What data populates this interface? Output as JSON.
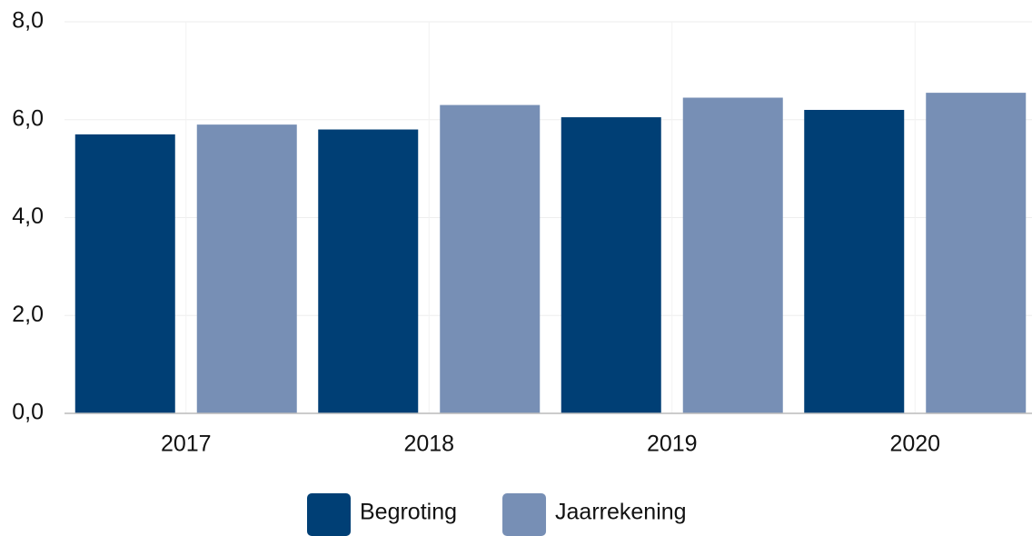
{
  "chart_data": {
    "type": "bar",
    "categories": [
      "2017",
      "2018",
      "2019",
      "2020"
    ],
    "series": [
      {
        "name": "Begroting",
        "color": "#003f75",
        "values": [
          5.7,
          5.8,
          6.05,
          6.2
        ]
      },
      {
        "name": "Jaarrekening",
        "color": "#778fb5",
        "values": [
          5.9,
          6.3,
          6.45,
          6.55
        ]
      }
    ],
    "ylim": [
      0,
      8
    ],
    "yticks": [
      {
        "value": 0,
        "label": "0,0"
      },
      {
        "value": 2,
        "label": "2,0"
      },
      {
        "value": 4,
        "label": "4,0"
      },
      {
        "value": 6,
        "label": "6,0"
      },
      {
        "value": 8,
        "label": "8,0"
      }
    ],
    "grid": true,
    "legend": "bottom"
  }
}
